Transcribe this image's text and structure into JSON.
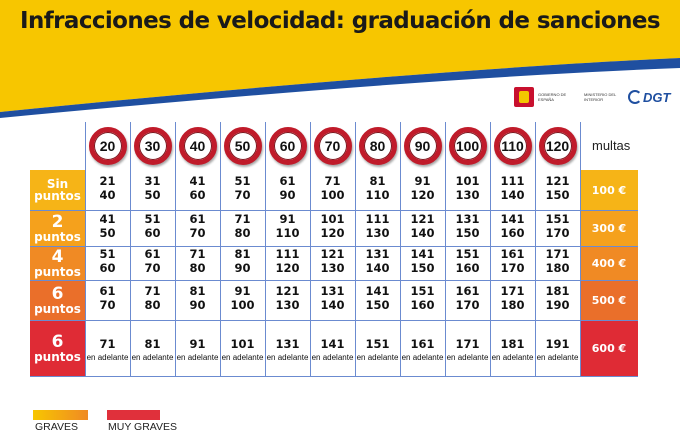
{
  "title": "Infracciones de velocidad: graduación de sanciones",
  "logos": {
    "gov_text": "GOBIERNO DE ESPAÑA",
    "ministry_text": "MINISTERIO DEL INTERIOR",
    "dgt_text": "DGT"
  },
  "colors": {
    "banner_yellow": "#f7c600",
    "banner_stripe": "#1f4fa0",
    "sign_red": "#c01b2a",
    "row_colors": [
      "#f6b417",
      "#f5a11c",
      "#f08a24",
      "#ea6f2a",
      "#df2b35"
    ],
    "graves": "#f5a623",
    "muy_graves": "#e0303b"
  },
  "speed_limits": [
    "20",
    "30",
    "40",
    "50",
    "60",
    "70",
    "80",
    "90",
    "100",
    "110",
    "120"
  ],
  "multas_header": "multas",
  "rows": [
    {
      "points_top": "Sin",
      "points_bottom": "puntos",
      "fine": "100 €",
      "cells": [
        [
          "21",
          "40"
        ],
        [
          "31",
          "50"
        ],
        [
          "41",
          "60"
        ],
        [
          "51",
          "70"
        ],
        [
          "61",
          "90"
        ],
        [
          "71",
          "100"
        ],
        [
          "81",
          "110"
        ],
        [
          "91",
          "120"
        ],
        [
          "101",
          "130"
        ],
        [
          "111",
          "140"
        ],
        [
          "121",
          "150"
        ]
      ]
    },
    {
      "points_top": "2",
      "points_bottom": "puntos",
      "fine": "300 €",
      "cells": [
        [
          "41",
          "50"
        ],
        [
          "51",
          "60"
        ],
        [
          "61",
          "70"
        ],
        [
          "71",
          "80"
        ],
        [
          "91",
          "110"
        ],
        [
          "101",
          "120"
        ],
        [
          "111",
          "130"
        ],
        [
          "121",
          "140"
        ],
        [
          "131",
          "150"
        ],
        [
          "141",
          "160"
        ],
        [
          "151",
          "170"
        ]
      ]
    },
    {
      "points_top": "4",
      "points_bottom": "puntos",
      "fine": "400 €",
      "cells": [
        [
          "51",
          "60"
        ],
        [
          "61",
          "70"
        ],
        [
          "71",
          "80"
        ],
        [
          "81",
          "90"
        ],
        [
          "111",
          "120"
        ],
        [
          "121",
          "130"
        ],
        [
          "131",
          "140"
        ],
        [
          "141",
          "150"
        ],
        [
          "151",
          "160"
        ],
        [
          "161",
          "170"
        ],
        [
          "171",
          "180"
        ]
      ]
    },
    {
      "points_top": "6",
      "points_bottom": "puntos",
      "fine": "500 €",
      "cells": [
        [
          "61",
          "70"
        ],
        [
          "71",
          "80"
        ],
        [
          "81",
          "90"
        ],
        [
          "91",
          "100"
        ],
        [
          "121",
          "130"
        ],
        [
          "131",
          "140"
        ],
        [
          "141",
          "150"
        ],
        [
          "151",
          "160"
        ],
        [
          "161",
          "170"
        ],
        [
          "171",
          "180"
        ],
        [
          "181",
          "190"
        ]
      ]
    },
    {
      "points_top": "6",
      "points_bottom": "puntos",
      "fine": "600 €",
      "cells": [
        [
          "71",
          "en adelante"
        ],
        [
          "81",
          "en adelante"
        ],
        [
          "91",
          "en adelante"
        ],
        [
          "101",
          "en adelante"
        ],
        [
          "131",
          "en adelante"
        ],
        [
          "141",
          "en adelante"
        ],
        [
          "151",
          "en adelante"
        ],
        [
          "161",
          "en adelante"
        ],
        [
          "171",
          "en adelante"
        ],
        [
          "181",
          "en adelante"
        ],
        [
          "191",
          "en adelante"
        ]
      ]
    }
  ],
  "legend": {
    "graves": "GRAVES",
    "muy_graves": "MUY GRAVES"
  }
}
